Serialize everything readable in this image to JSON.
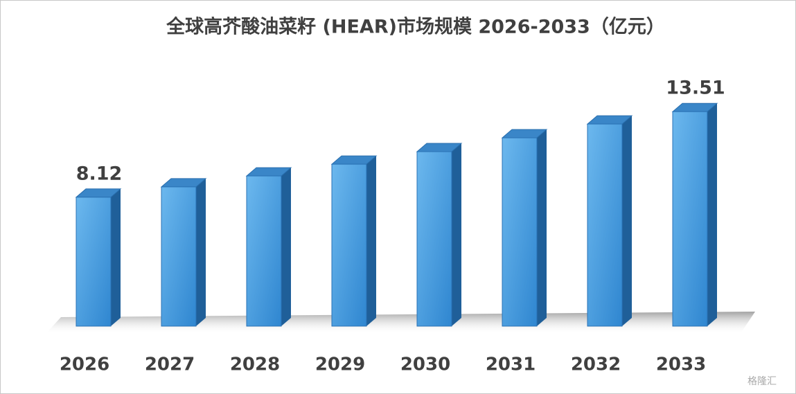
{
  "chart_data": {
    "type": "bar3d",
    "title": "全球高芥酸油菜籽 (HEAR)市场规模 2026-2033（亿元）",
    "categories": [
      "2026",
      "2027",
      "2028",
      "2029",
      "2030",
      "2031",
      "2032",
      "2033"
    ],
    "values": [
      8.12,
      8.77,
      9.46,
      10.2,
      10.99,
      11.86,
      12.73,
      13.51
    ],
    "value_labels": [
      "8.12",
      null,
      null,
      null,
      null,
      null,
      null,
      "13.51"
    ],
    "color": "#3f97dc"
  },
  "watermark": "格隆汇"
}
